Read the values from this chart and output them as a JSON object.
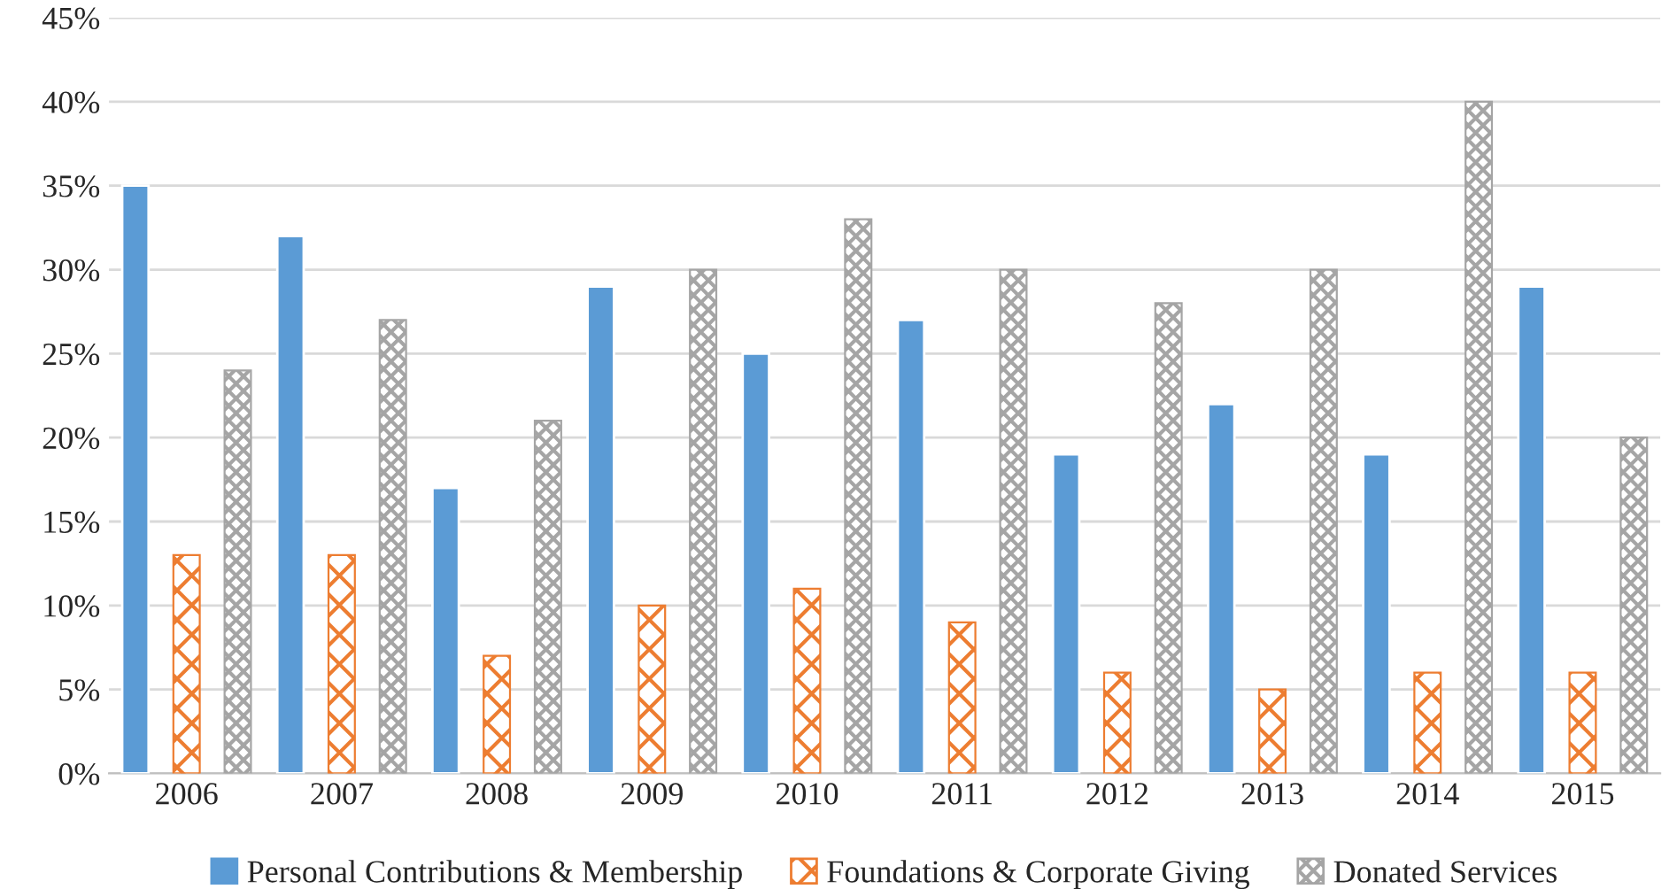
{
  "chart_data": {
    "type": "bar",
    "categories": [
      "2006",
      "2007",
      "2008",
      "2009",
      "2010",
      "2011",
      "2012",
      "2013",
      "2014",
      "2015"
    ],
    "series": [
      {
        "name": "Personal Contributions & Membership",
        "color": "#5b9bd5",
        "values": [
          35,
          32,
          17,
          29,
          25,
          27,
          19,
          22,
          19,
          29
        ]
      },
      {
        "name": "Foundations & Corporate Giving",
        "color": "#ed7d31",
        "values": [
          13,
          13,
          7,
          10,
          11,
          9,
          6,
          5,
          6,
          6
        ]
      },
      {
        "name": "Donated Services",
        "color": "#a5a5a5",
        "values": [
          24,
          27,
          21,
          30,
          33,
          30,
          28,
          30,
          40,
          20
        ]
      }
    ],
    "ylim": [
      0,
      45
    ],
    "yticks": [
      {
        "value": 0,
        "label": "0%"
      },
      {
        "value": 5,
        "label": "5%"
      },
      {
        "value": 10,
        "label": "10%"
      },
      {
        "value": 15,
        "label": "15%"
      },
      {
        "value": 20,
        "label": "20%"
      },
      {
        "value": 25,
        "label": "25%"
      },
      {
        "value": 30,
        "label": "30%"
      },
      {
        "value": 35,
        "label": "35%"
      },
      {
        "value": 40,
        "label": "40%"
      },
      {
        "value": 45,
        "label": "45%"
      }
    ],
    "grid": "y",
    "legend": "bottom"
  }
}
